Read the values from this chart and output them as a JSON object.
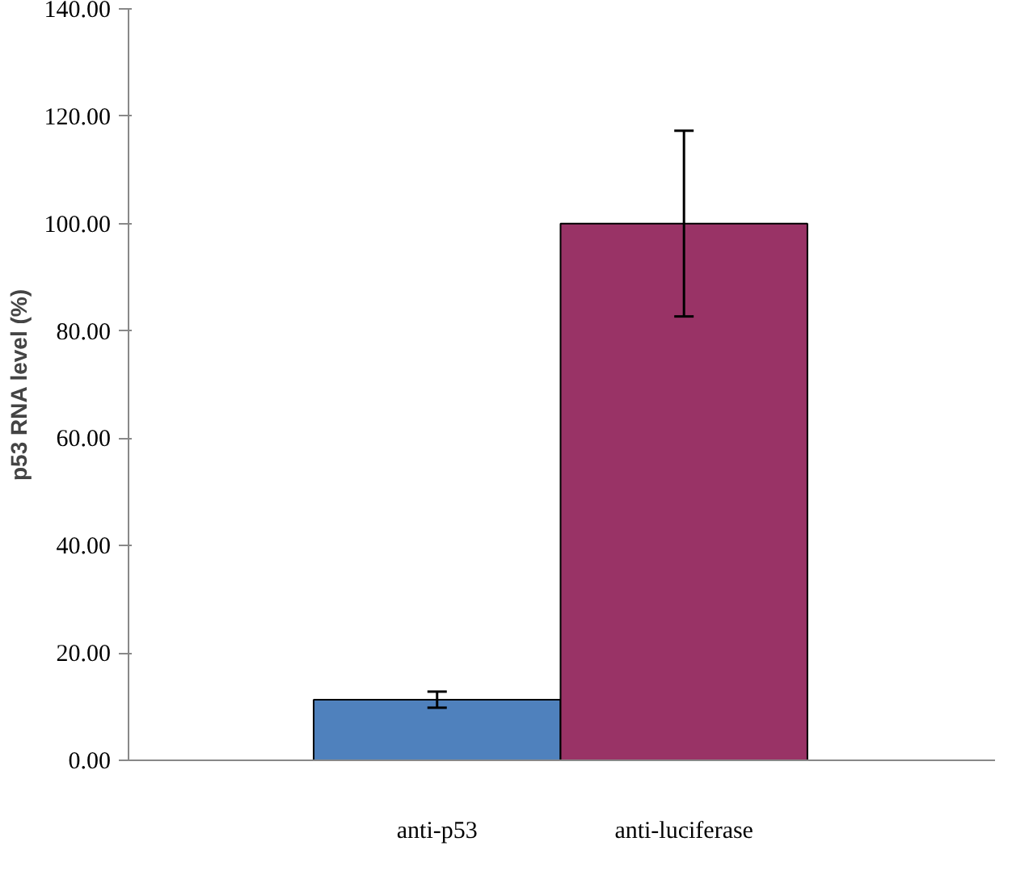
{
  "chart_data": {
    "type": "bar",
    "categories": [
      "anti-p53",
      "anti-luciferase"
    ],
    "values": [
      11.3,
      100
    ],
    "colors": [
      "#4f81bd",
      "#993366"
    ],
    "errors": [
      1.5,
      17.3
    ],
    "ylabel": "p53 RNA level (%)",
    "ylim": [
      0,
      140
    ],
    "yticks": [
      {
        "value": 0,
        "label": "0.00"
      },
      {
        "value": 20,
        "label": "20.00"
      },
      {
        "value": 40,
        "label": "40.00"
      },
      {
        "value": 60,
        "label": "60.00"
      },
      {
        "value": 80,
        "label": "80.00"
      },
      {
        "value": 100,
        "label": "100.00"
      },
      {
        "value": 120,
        "label": "120.00"
      },
      {
        "value": 140,
        "label": "140.00"
      }
    ],
    "grid": false
  }
}
